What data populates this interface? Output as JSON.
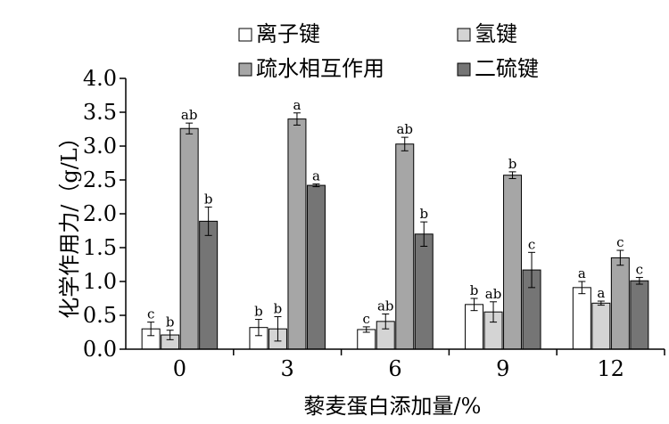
{
  "chart_data": {
    "type": "bar",
    "title": "",
    "xlabel": "藜麦蛋白添加量/%",
    "ylabel": "化学作用力/（g/L）",
    "ylim": [
      0,
      4.0
    ],
    "yticks": [
      "0.0",
      "0.5",
      "1.0",
      "1.5",
      "2.0",
      "2.5",
      "3.0",
      "3.5",
      "4.0"
    ],
    "categories": [
      "0",
      "3",
      "6",
      "9",
      "12"
    ],
    "legend_position": "top",
    "grid": false,
    "series": [
      {
        "name": "离子键",
        "color": "#ffffff",
        "values": [
          0.3,
          0.32,
          0.29,
          0.66,
          0.91
        ],
        "errors": [
          0.1,
          0.12,
          0.04,
          0.09,
          0.09
        ],
        "labels": [
          "c",
          "b",
          "c",
          "b",
          "a"
        ]
      },
      {
        "name": "氢键",
        "color": "#d4d4d4",
        "values": [
          0.21,
          0.3,
          0.41,
          0.55,
          0.68
        ],
        "errors": [
          0.07,
          0.18,
          0.11,
          0.15,
          0.03
        ],
        "labels": [
          "b",
          "b",
          "ab",
          "ab",
          "a"
        ]
      },
      {
        "name": "疏水相互作用",
        "color": "#a6a6a6",
        "values": [
          3.26,
          3.4,
          3.03,
          2.57,
          1.35
        ],
        "errors": [
          0.08,
          0.09,
          0.1,
          0.05,
          0.11
        ],
        "labels": [
          "ab",
          "a",
          "ab",
          "b",
          "c"
        ]
      },
      {
        "name": "二硫键",
        "color": "#757575",
        "values": [
          1.89,
          2.42,
          1.7,
          1.17,
          1.01
        ],
        "errors": [
          0.21,
          0.02,
          0.18,
          0.26,
          0.05
        ],
        "labels": [
          "b",
          "a",
          "b",
          "c",
          "c"
        ]
      }
    ]
  }
}
